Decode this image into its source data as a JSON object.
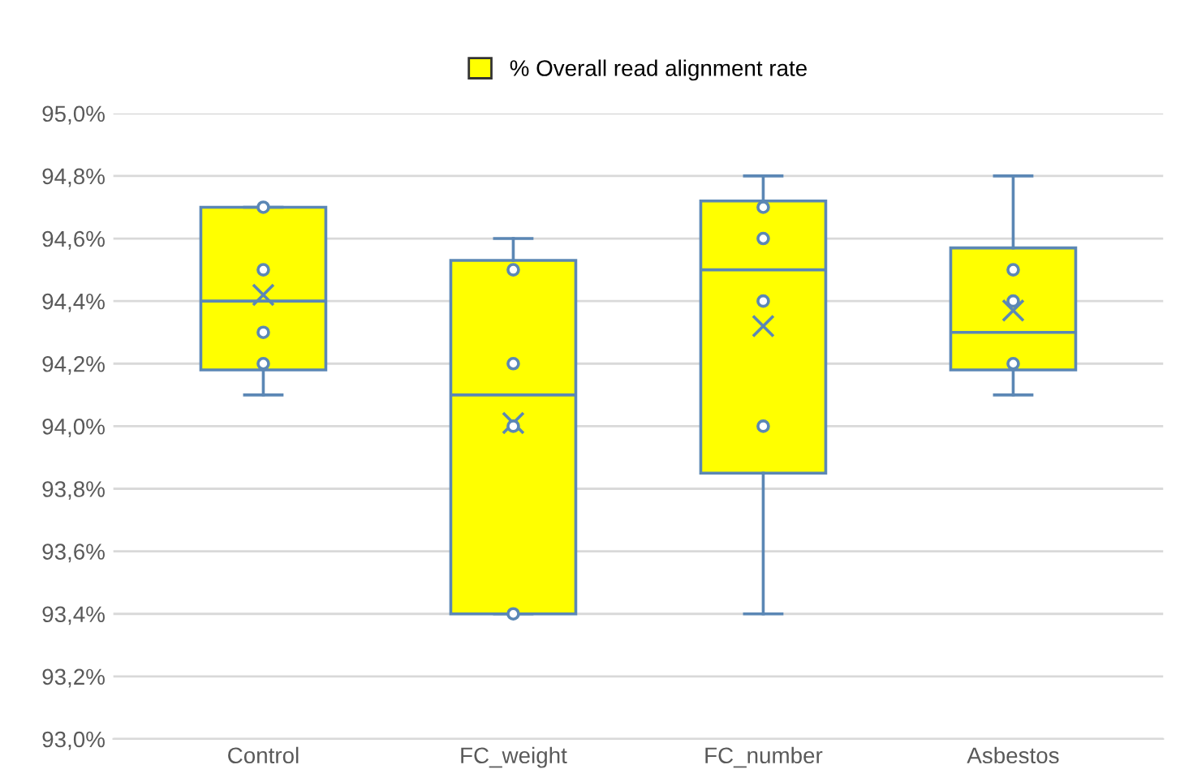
{
  "chart_data": {
    "type": "box",
    "categories": [
      "Control",
      "FC_weight",
      "FC_number",
      "Asbestos"
    ],
    "series": [
      {
        "name": "% Overall read alignment rate",
        "color": "#ffff00",
        "boxes": [
          {
            "low": 94.1,
            "q1": 94.18,
            "median": 94.4,
            "q3": 94.7,
            "high": 94.7,
            "mean": 94.42
          },
          {
            "low": 93.4,
            "q1": 93.4,
            "median": 94.1,
            "q3": 94.53,
            "high": 94.6,
            "mean": 94.01
          },
          {
            "low": 93.4,
            "q1": 93.85,
            "median": 94.5,
            "q3": 94.72,
            "high": 94.8,
            "mean": 94.32
          },
          {
            "low": 94.1,
            "q1": 94.18,
            "median": 94.3,
            "q3": 94.57,
            "high": 94.8,
            "mean": 94.37
          }
        ]
      },
      {
        "type": "scatter",
        "color": "#5b87b5",
        "marker": "circle",
        "x": [
          "Control",
          "Control",
          "Control",
          "Control",
          "FC_weight",
          "FC_weight",
          "FC_weight",
          "FC_weight",
          "FC_number",
          "FC_number",
          "FC_number",
          "FC_number",
          "Asbestos",
          "Asbestos",
          "Asbestos"
        ],
        "values": [
          94.7,
          94.5,
          94.3,
          94.2,
          94.5,
          94.2,
          94.0,
          93.4,
          94.7,
          94.6,
          94.4,
          94.0,
          94.5,
          94.4,
          94.2
        ]
      }
    ],
    "ylim": [
      93.0,
      95.0
    ],
    "yticks": [
      {
        "value": 93.0,
        "label": "93,0%"
      },
      {
        "value": 93.2,
        "label": "93,2%"
      },
      {
        "value": 93.4,
        "label": "93,4%"
      },
      {
        "value": 93.6,
        "label": "93,6%"
      },
      {
        "value": 93.8,
        "label": "93,8%"
      },
      {
        "value": 94.0,
        "label": "94,0%"
      },
      {
        "value": 94.2,
        "label": "94,2%"
      },
      {
        "value": 94.4,
        "label": "94,4%"
      },
      {
        "value": 94.6,
        "label": "94,6%"
      },
      {
        "value": 94.8,
        "label": "94,8%"
      },
      {
        "value": 95.0,
        "label": "95,0%"
      }
    ],
    "grid": "y",
    "legend": "top"
  }
}
